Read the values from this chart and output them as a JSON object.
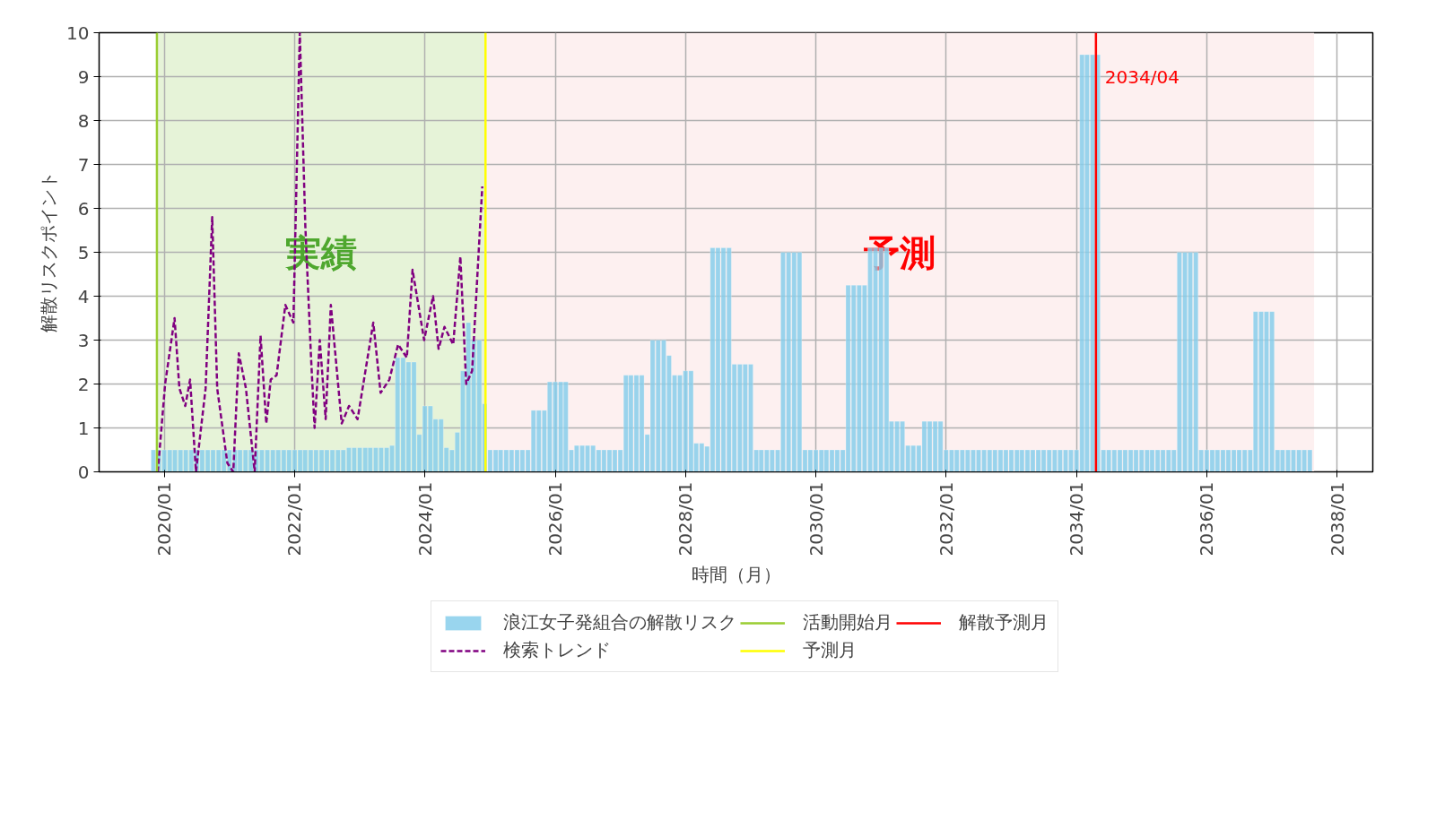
{
  "chart_data": {
    "type": "bar",
    "xlabel": "時間（月）",
    "ylabel": "解散リスクポイント",
    "xlim": [
      "2019-01-01",
      "2038-07-20"
    ],
    "ylim": [
      0,
      10
    ],
    "yticks": [
      0,
      1,
      2,
      3,
      4,
      5,
      6,
      7,
      8,
      9,
      10
    ],
    "xticks": [
      {
        "value": "2020-01",
        "label": "2020/01"
      },
      {
        "value": "2022-01",
        "label": "2022/01"
      },
      {
        "value": "2024-01",
        "label": "2024/01"
      },
      {
        "value": "2026-01",
        "label": "2026/01"
      },
      {
        "value": "2028-01",
        "label": "2028/01"
      },
      {
        "value": "2030-01",
        "label": "2030/01"
      },
      {
        "value": "2032-01",
        "label": "2032/01"
      },
      {
        "value": "2034-01",
        "label": "2034/01"
      },
      {
        "value": "2036-01",
        "label": "2036/01"
      },
      {
        "value": "2038-01",
        "label": "2038/01"
      }
    ],
    "grid": true,
    "legend": "bottom",
    "series": [
      {
        "name": "浪江女子発組合の解散リスク",
        "color": "#87ceeb",
        "x": [
          "2019-11",
          "2019-12",
          "2020-01",
          "2020-02",
          "2020-03",
          "2020-04",
          "2020-05",
          "2020-06",
          "2020-07",
          "2020-08",
          "2020-09",
          "2020-10",
          "2020-11",
          "2020-12",
          "2021-01",
          "2021-02",
          "2021-03",
          "2021-04",
          "2021-05",
          "2021-06",
          "2021-07",
          "2021-08",
          "2021-09",
          "2021-10",
          "2021-11",
          "2021-12",
          "2022-01",
          "2022-02",
          "2022-03",
          "2022-04",
          "2022-05",
          "2022-06",
          "2022-07",
          "2022-08",
          "2022-09",
          "2022-10",
          "2022-11",
          "2022-12",
          "2023-01",
          "2023-02",
          "2023-03",
          "2023-04",
          "2023-05",
          "2023-06",
          "2023-07",
          "2023-08",
          "2023-09",
          "2023-10",
          "2023-11",
          "2023-12",
          "2024-01",
          "2024-02",
          "2024-03",
          "2024-04",
          "2024-05",
          "2024-06",
          "2024-07",
          "2024-08",
          "2024-09",
          "2024-10",
          "2024-11",
          "2024-12",
          "2025-01",
          "2025-02",
          "2025-03",
          "2025-04",
          "2025-05",
          "2025-06",
          "2025-07",
          "2025-08",
          "2025-09",
          "2025-10",
          "2025-11",
          "2025-12",
          "2026-01",
          "2026-02",
          "2026-03",
          "2026-04",
          "2026-05",
          "2026-06",
          "2026-07",
          "2026-08",
          "2026-09",
          "2026-10",
          "2026-11",
          "2026-12",
          "2027-01",
          "2027-02",
          "2027-03",
          "2027-04",
          "2027-05",
          "2027-06",
          "2027-07",
          "2027-08",
          "2027-09",
          "2027-10",
          "2027-11",
          "2027-12",
          "2028-01",
          "2028-02",
          "2028-03",
          "2028-04",
          "2028-05",
          "2028-06",
          "2028-07",
          "2028-08",
          "2028-09",
          "2028-10",
          "2028-11",
          "2028-12",
          "2029-01",
          "2029-02",
          "2029-03",
          "2029-04",
          "2029-05",
          "2029-06",
          "2029-07",
          "2029-08",
          "2029-09",
          "2029-10",
          "2029-11",
          "2029-12",
          "2030-01",
          "2030-02",
          "2030-03",
          "2030-04",
          "2030-05",
          "2030-06",
          "2030-07",
          "2030-08",
          "2030-09",
          "2030-10",
          "2030-11",
          "2030-12",
          "2031-01",
          "2031-02",
          "2031-03",
          "2031-04",
          "2031-05",
          "2031-06",
          "2031-07",
          "2031-08",
          "2031-09",
          "2031-10",
          "2031-11",
          "2031-12",
          "2032-01",
          "2032-02",
          "2032-03",
          "2032-04",
          "2032-05",
          "2032-06",
          "2032-07",
          "2032-08",
          "2032-09",
          "2032-10",
          "2032-11",
          "2032-12",
          "2033-01",
          "2033-02",
          "2033-03",
          "2033-04",
          "2033-05",
          "2033-06",
          "2033-07",
          "2033-08",
          "2033-09",
          "2033-10",
          "2033-11",
          "2033-12",
          "2034-01",
          "2034-02",
          "2034-03",
          "2034-04",
          "2034-05",
          "2034-06",
          "2034-07",
          "2034-08",
          "2034-09",
          "2034-10",
          "2034-11",
          "2034-12",
          "2035-01",
          "2035-02",
          "2035-03",
          "2035-04",
          "2035-05",
          "2035-06",
          "2035-07",
          "2035-08",
          "2035-09",
          "2035-10",
          "2035-11",
          "2035-12",
          "2036-01",
          "2036-02",
          "2036-03",
          "2036-04",
          "2036-05",
          "2036-06",
          "2036-07",
          "2036-08",
          "2036-09",
          "2036-10",
          "2036-11",
          "2036-12",
          "2037-01",
          "2037-02",
          "2037-03",
          "2037-04",
          "2037-05",
          "2037-06",
          "2037-07",
          "2037-08"
        ],
        "values": [
          0.5,
          0.5,
          0.5,
          0.5,
          0.5,
          0.5,
          0.5,
          0.5,
          0.5,
          0.5,
          0.5,
          0.5,
          0.5,
          0.5,
          0.5,
          0.5,
          0.5,
          0.5,
          0.5,
          0.5,
          0.5,
          0.5,
          0.5,
          0.5,
          0.5,
          0.5,
          0.5,
          0.5,
          0.5,
          0.5,
          0.5,
          0.5,
          0.5,
          0.5,
          0.5,
          0.5,
          0.55,
          0.55,
          0.55,
          0.55,
          0.55,
          0.55,
          0.55,
          0.55,
          0.6,
          2.6,
          2.6,
          2.5,
          2.5,
          0.85,
          1.5,
          1.5,
          1.2,
          1.2,
          0.55,
          0.5,
          0.9,
          2.3,
          3.4,
          3.0,
          3.0,
          1.55,
          0.5,
          0.5,
          0.5,
          0.5,
          0.5,
          0.5,
          0.5,
          0.5,
          1.4,
          1.4,
          1.4,
          2.05,
          2.05,
          2.05,
          2.05,
          0.5,
          0.6,
          0.6,
          0.6,
          0.6,
          0.5,
          0.5,
          0.5,
          0.5,
          0.5,
          2.2,
          2.2,
          2.2,
          2.2,
          0.85,
          3.0,
          3.0,
          3.0,
          2.65,
          2.2,
          2.2,
          2.3,
          2.3,
          0.65,
          0.65,
          0.58,
          5.1,
          5.1,
          5.1,
          5.1,
          2.45,
          2.45,
          2.45,
          2.45,
          0.5,
          0.5,
          0.5,
          0.5,
          0.5,
          5.0,
          5.0,
          5.0,
          5.0,
          0.5,
          0.5,
          0.5,
          0.5,
          0.5,
          0.5,
          0.5,
          0.5,
          4.25,
          4.25,
          4.25,
          4.25,
          5.1,
          5.1,
          5.1,
          5.1,
          1.15,
          1.15,
          1.15,
          0.6,
          0.6,
          0.6,
          1.15,
          1.15,
          1.15,
          1.15,
          0.5,
          0.5,
          0.5,
          0.5,
          0.5,
          0.5,
          0.5,
          0.5,
          0.5,
          0.5,
          0.5,
          0.5,
          0.5,
          0.5,
          0.5,
          0.5,
          0.5,
          0.5,
          0.5,
          0.5,
          0.5,
          0.5,
          0.5,
          0.5,
          0.5,
          9.5,
          9.5,
          9.5,
          9.5,
          0.5,
          0.5,
          0.5,
          0.5,
          0.5,
          0.5,
          0.5,
          0.5,
          0.5,
          0.5,
          0.5,
          0.5,
          0.5,
          0.5,
          5.0,
          5.0,
          5.0,
          5.0,
          0.5,
          0.5,
          0.5,
          0.5,
          0.5,
          0.5,
          0.5,
          0.5,
          0.5,
          0.5,
          3.65,
          3.65,
          3.65,
          3.65,
          0.5,
          0.5,
          0.5,
          0.5,
          0.5,
          0.5,
          0.5
        ]
      },
      {
        "name": "検索トレンド",
        "type": "line",
        "color": "#800080",
        "line_style": "dashed",
        "x": [
          "2019-11-26",
          "2020-01-06",
          "2020-02-28",
          "2020-03-26",
          "2020-04-28",
          "2020-05-25",
          "2020-06-27",
          "2020-08-20",
          "2020-09-26",
          "2020-10-24",
          "2020-12-20",
          "2021-01-22",
          "2021-02-22",
          "2021-04-03",
          "2021-05-22",
          "2021-06-24",
          "2021-07-26",
          "2021-08-20",
          "2021-09-22",
          "2021-11-10",
          "2021-12-25",
          "2022-01-30",
          "2022-03-02",
          "2022-04-03",
          "2022-04-23",
          "2022-05-22",
          "2022-06-24",
          "2022-07-23",
          "2022-09-22",
          "2022-11-02",
          "2022-12-20",
          "2023-03-18",
          "2023-04-28",
          "2023-06-16",
          "2023-08-04",
          "2023-09-22",
          "2023-10-24",
          "2023-12-28",
          "2024-02-16",
          "2024-03-18",
          "2024-04-20",
          "2024-06-08",
          "2024-07-18",
          "2024-08-20",
          "2024-09-22",
          "2024-11-18"
        ],
        "values": [
          0,
          2.0,
          3.5,
          1.9,
          1.5,
          2.1,
          0.0,
          1.9,
          5.8,
          1.9,
          0.2,
          0.0,
          2.7,
          1.9,
          0.0,
          3.1,
          1.1,
          2.1,
          2.2,
          3.8,
          3.4,
          10.0,
          5.6,
          2.6,
          1.0,
          3.0,
          1.2,
          3.8,
          1.1,
          1.5,
          1.2,
          3.4,
          1.8,
          2.1,
          2.9,
          2.6,
          4.6,
          3.0,
          4.0,
          2.8,
          3.3,
          2.9,
          4.9,
          2.0,
          2.3,
          6.5
        ]
      }
    ],
    "ref_lines": [
      {
        "axis": "x",
        "value": "2019-11-21",
        "label": "活動開始月",
        "color": "#9acd32"
      },
      {
        "axis": "x",
        "value": "2024-12-06",
        "label": "予測月",
        "color": "#ffff00"
      },
      {
        "axis": "x",
        "value": "2034-04-20",
        "label": "解散予測月",
        "color": "#ff0000"
      }
    ],
    "bands": [
      {
        "axis": "x",
        "from": "2019-11-21",
        "to": "2024-12-06",
        "label": "実績",
        "color": "#e6f3d8"
      },
      {
        "axis": "x",
        "from": "2024-12-06",
        "to": "2037-08-25",
        "label": "予測",
        "color": "#fdf0f0"
      }
    ],
    "annotations": [
      {
        "text": "2034/04",
        "x": "2034-04-20",
        "y": 9.0
      }
    ]
  }
}
